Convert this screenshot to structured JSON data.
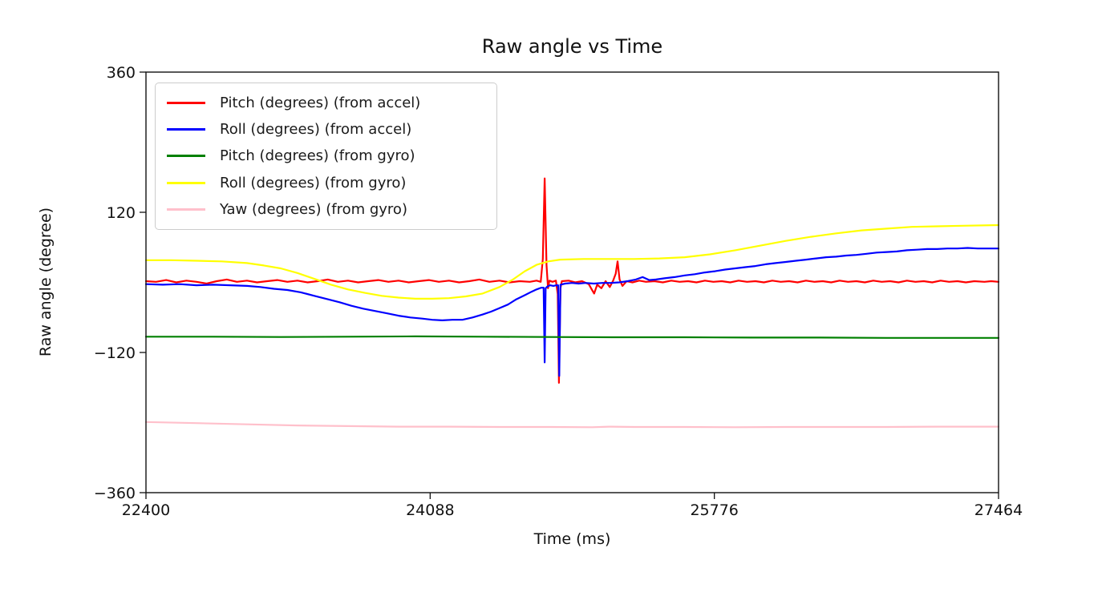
{
  "figure": {
    "background": "#ffffff",
    "text_color": "#111111"
  },
  "chart_data": {
    "type": "line",
    "title": "Raw angle vs Time",
    "xlabel": "Time (ms)",
    "ylabel": "Raw angle (degree)",
    "xlim": [
      22400,
      27464
    ],
    "ylim": [
      -360,
      360
    ],
    "grid": false,
    "legend_position": "upper left",
    "x_ticks": [
      {
        "value": 22400,
        "label": "22400"
      },
      {
        "value": 24088,
        "label": "24088"
      },
      {
        "value": 25776,
        "label": "25776"
      },
      {
        "value": 27464,
        "label": "27464"
      }
    ],
    "y_ticks": [
      {
        "value": 360,
        "label": "360"
      },
      {
        "value": 120,
        "label": "120"
      },
      {
        "value": -120,
        "label": "−120"
      },
      {
        "value": -360,
        "label": "−360"
      }
    ],
    "series": [
      {
        "name": "Pitch (degrees) (from accel)",
        "color": "#ff0000",
        "points": [
          [
            22400,
            2
          ],
          [
            22460,
            1
          ],
          [
            22520,
            4
          ],
          [
            22580,
            0
          ],
          [
            22640,
            3
          ],
          [
            22700,
            1
          ],
          [
            22760,
            -2
          ],
          [
            22820,
            2
          ],
          [
            22880,
            5
          ],
          [
            22940,
            1
          ],
          [
            23000,
            3
          ],
          [
            23060,
            0
          ],
          [
            23120,
            2
          ],
          [
            23180,
            4
          ],
          [
            23240,
            1
          ],
          [
            23300,
            3
          ],
          [
            23360,
            0
          ],
          [
            23420,
            2
          ],
          [
            23480,
            5
          ],
          [
            23540,
            1
          ],
          [
            23600,
            3
          ],
          [
            23660,
            0
          ],
          [
            23720,
            2
          ],
          [
            23780,
            4
          ],
          [
            23840,
            1
          ],
          [
            23900,
            3
          ],
          [
            23960,
            0
          ],
          [
            24020,
            2
          ],
          [
            24080,
            4
          ],
          [
            24140,
            1
          ],
          [
            24200,
            3
          ],
          [
            24260,
            0
          ],
          [
            24320,
            2
          ],
          [
            24380,
            5
          ],
          [
            24440,
            1
          ],
          [
            24500,
            3
          ],
          [
            24560,
            0
          ],
          [
            24620,
            2
          ],
          [
            24680,
            1
          ],
          [
            24720,
            3
          ],
          [
            24745,
            1
          ],
          [
            24757,
            40
          ],
          [
            24768,
            178
          ],
          [
            24779,
            30
          ],
          [
            24788,
            -10
          ],
          [
            24796,
            3
          ],
          [
            24815,
            1
          ],
          [
            24835,
            3
          ],
          [
            24846,
            -20
          ],
          [
            24853,
            -172
          ],
          [
            24862,
            -10
          ],
          [
            24870,
            2
          ],
          [
            24910,
            3
          ],
          [
            24950,
            0
          ],
          [
            24990,
            2
          ],
          [
            25030,
            -3
          ],
          [
            25048,
            -12
          ],
          [
            25062,
            -19
          ],
          [
            25080,
            -4
          ],
          [
            25105,
            -10
          ],
          [
            25130,
            2
          ],
          [
            25155,
            -8
          ],
          [
            25175,
            3
          ],
          [
            25190,
            15
          ],
          [
            25201,
            36
          ],
          [
            25213,
            5
          ],
          [
            25230,
            -6
          ],
          [
            25255,
            2
          ],
          [
            25290,
            0
          ],
          [
            25330,
            3
          ],
          [
            25370,
            1
          ],
          [
            25420,
            2
          ],
          [
            25470,
            0
          ],
          [
            25520,
            3
          ],
          [
            25570,
            1
          ],
          [
            25620,
            2
          ],
          [
            25670,
            0
          ],
          [
            25720,
            3
          ],
          [
            25770,
            1
          ],
          [
            25820,
            2
          ],
          [
            25870,
            0
          ],
          [
            25920,
            3
          ],
          [
            25970,
            1
          ],
          [
            26020,
            2
          ],
          [
            26070,
            0
          ],
          [
            26120,
            3
          ],
          [
            26170,
            1
          ],
          [
            26220,
            2
          ],
          [
            26270,
            0
          ],
          [
            26320,
            3
          ],
          [
            26370,
            1
          ],
          [
            26420,
            2
          ],
          [
            26470,
            0
          ],
          [
            26520,
            3
          ],
          [
            26570,
            1
          ],
          [
            26620,
            2
          ],
          [
            26670,
            0
          ],
          [
            26720,
            3
          ],
          [
            26770,
            1
          ],
          [
            26820,
            2
          ],
          [
            26870,
            0
          ],
          [
            26920,
            3
          ],
          [
            26970,
            1
          ],
          [
            27020,
            2
          ],
          [
            27070,
            0
          ],
          [
            27120,
            3
          ],
          [
            27170,
            1
          ],
          [
            27220,
            2
          ],
          [
            27270,
            0
          ],
          [
            27320,
            2
          ],
          [
            27380,
            1
          ],
          [
            27420,
            2
          ],
          [
            27464,
            1
          ]
        ]
      },
      {
        "name": "Roll (degrees) (from accel)",
        "color": "#0000ff",
        "points": [
          [
            22400,
            -3
          ],
          [
            22500,
            -4
          ],
          [
            22600,
            -3
          ],
          [
            22700,
            -5
          ],
          [
            22800,
            -4
          ],
          [
            22900,
            -5
          ],
          [
            23000,
            -6
          ],
          [
            23080,
            -8
          ],
          [
            23160,
            -11
          ],
          [
            23240,
            -13
          ],
          [
            23320,
            -17
          ],
          [
            23400,
            -23
          ],
          [
            23480,
            -29
          ],
          [
            23550,
            -34
          ],
          [
            23620,
            -40
          ],
          [
            23690,
            -45
          ],
          [
            23760,
            -49
          ],
          [
            23830,
            -53
          ],
          [
            23900,
            -57
          ],
          [
            23970,
            -60
          ],
          [
            24040,
            -62
          ],
          [
            24100,
            -64
          ],
          [
            24160,
            -65
          ],
          [
            24220,
            -64
          ],
          [
            24280,
            -64
          ],
          [
            24340,
            -60
          ],
          [
            24400,
            -55
          ],
          [
            24450,
            -50
          ],
          [
            24500,
            -44
          ],
          [
            24550,
            -38
          ],
          [
            24600,
            -29
          ],
          [
            24650,
            -22
          ],
          [
            24690,
            -16
          ],
          [
            24720,
            -12
          ],
          [
            24748,
            -9
          ],
          [
            24762,
            -9
          ],
          [
            24768,
            -137
          ],
          [
            24774,
            -10
          ],
          [
            24785,
            -7
          ],
          [
            24800,
            -5
          ],
          [
            24820,
            -6
          ],
          [
            24838,
            -5
          ],
          [
            24848,
            -5
          ],
          [
            24855,
            -160
          ],
          [
            24862,
            -4
          ],
          [
            24890,
            -2
          ],
          [
            24930,
            -1
          ],
          [
            24970,
            -2
          ],
          [
            25010,
            -1
          ],
          [
            25060,
            -2
          ],
          [
            25110,
            -1
          ],
          [
            25160,
            -1
          ],
          [
            25210,
            0
          ],
          [
            25260,
            2
          ],
          [
            25310,
            5
          ],
          [
            25350,
            9
          ],
          [
            25390,
            4
          ],
          [
            25430,
            5
          ],
          [
            25480,
            7
          ],
          [
            25540,
            9
          ],
          [
            25600,
            12
          ],
          [
            25660,
            14
          ],
          [
            25720,
            17
          ],
          [
            25780,
            19
          ],
          [
            25840,
            22
          ],
          [
            25900,
            24
          ],
          [
            25960,
            26
          ],
          [
            26020,
            28
          ],
          [
            26080,
            31
          ],
          [
            26140,
            33
          ],
          [
            26200,
            35
          ],
          [
            26260,
            37
          ],
          [
            26320,
            39
          ],
          [
            26380,
            41
          ],
          [
            26440,
            43
          ],
          [
            26500,
            44
          ],
          [
            26560,
            46
          ],
          [
            26620,
            47
          ],
          [
            26680,
            49
          ],
          [
            26740,
            51
          ],
          [
            26800,
            52
          ],
          [
            26860,
            53
          ],
          [
            26920,
            55
          ],
          [
            26980,
            56
          ],
          [
            27040,
            57
          ],
          [
            27100,
            57
          ],
          [
            27160,
            58
          ],
          [
            27220,
            58
          ],
          [
            27280,
            59
          ],
          [
            27340,
            58
          ],
          [
            27400,
            58
          ],
          [
            27464,
            58
          ]
        ]
      },
      {
        "name": "Pitch (degrees) (from gyro)",
        "color": "#008000",
        "points": [
          [
            22400,
            -93
          ],
          [
            22800,
            -93
          ],
          [
            23200,
            -93.5
          ],
          [
            23600,
            -93
          ],
          [
            24000,
            -92.5
          ],
          [
            24400,
            -93
          ],
          [
            24800,
            -93.5
          ],
          [
            25200,
            -94
          ],
          [
            25600,
            -94
          ],
          [
            26000,
            -94.5
          ],
          [
            26400,
            -94.5
          ],
          [
            26800,
            -95
          ],
          [
            27200,
            -95
          ],
          [
            27464,
            -95
          ]
        ]
      },
      {
        "name": "Roll (degrees) (from gyro)",
        "color": "#ffff00",
        "points": [
          [
            22400,
            38
          ],
          [
            22550,
            38
          ],
          [
            22700,
            37
          ],
          [
            22850,
            36
          ],
          [
            23000,
            33
          ],
          [
            23100,
            29
          ],
          [
            23200,
            24
          ],
          [
            23300,
            16
          ],
          [
            23400,
            6
          ],
          [
            23500,
            -4
          ],
          [
            23600,
            -12
          ],
          [
            23700,
            -18
          ],
          [
            23800,
            -23
          ],
          [
            23900,
            -26
          ],
          [
            24000,
            -28
          ],
          [
            24100,
            -28
          ],
          [
            24200,
            -27
          ],
          [
            24300,
            -24
          ],
          [
            24400,
            -19
          ],
          [
            24500,
            -8
          ],
          [
            24580,
            5
          ],
          [
            24650,
            19
          ],
          [
            24720,
            30
          ],
          [
            24790,
            36
          ],
          [
            24860,
            39
          ],
          [
            25000,
            40
          ],
          [
            25150,
            40
          ],
          [
            25300,
            40
          ],
          [
            25450,
            41
          ],
          [
            25600,
            43
          ],
          [
            25750,
            48
          ],
          [
            25900,
            55
          ],
          [
            26050,
            63
          ],
          [
            26200,
            71
          ],
          [
            26350,
            78
          ],
          [
            26500,
            84
          ],
          [
            26650,
            89
          ],
          [
            26800,
            92
          ],
          [
            26950,
            95
          ],
          [
            27100,
            96
          ],
          [
            27250,
            97
          ],
          [
            27464,
            98
          ]
        ]
      },
      {
        "name": "Yaw (degrees) (from gyro)",
        "color": "#ffc0cb",
        "points": [
          [
            22400,
            -239
          ],
          [
            22700,
            -241
          ],
          [
            23000,
            -243
          ],
          [
            23300,
            -245
          ],
          [
            23600,
            -246
          ],
          [
            23900,
            -247
          ],
          [
            24200,
            -247
          ],
          [
            24500,
            -247.5
          ],
          [
            24800,
            -247.5
          ],
          [
            25050,
            -248
          ],
          [
            25150,
            -247
          ],
          [
            25300,
            -247.5
          ],
          [
            25600,
            -247.5
          ],
          [
            25900,
            -248
          ],
          [
            26200,
            -247.5
          ],
          [
            26500,
            -247.5
          ],
          [
            26800,
            -247.5
          ],
          [
            27100,
            -247
          ],
          [
            27300,
            -247
          ],
          [
            27464,
            -247
          ]
        ]
      }
    ]
  }
}
